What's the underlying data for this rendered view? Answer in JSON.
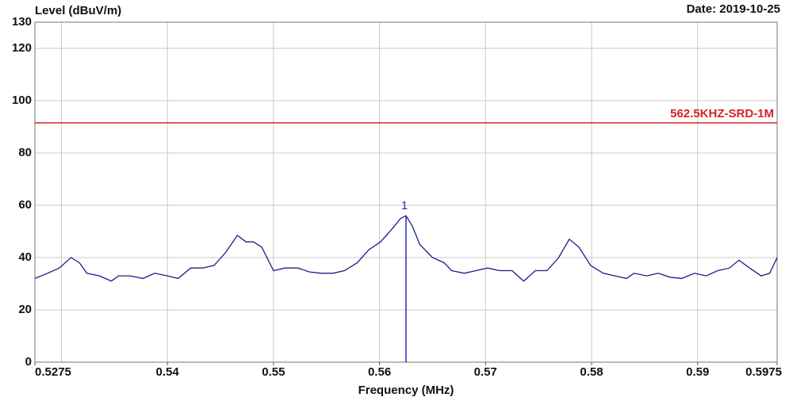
{
  "chart_data": {
    "type": "line",
    "title": "Level (dBuV/m)",
    "date": "Date: 2019-10-25",
    "xlabel": "Frequency (MHz)",
    "xlim": [
      0.5275,
      0.5975
    ],
    "ylim": [
      0,
      130
    ],
    "xticks": [
      0.5275,
      0.54,
      0.55,
      0.56,
      0.57,
      0.58,
      0.59,
      0.5975
    ],
    "xgrid": [
      0.53,
      0.54,
      0.55,
      0.56,
      0.57,
      0.58,
      0.59
    ],
    "yticks": [
      0,
      20,
      40,
      60,
      80,
      100,
      120,
      130
    ],
    "grid": true,
    "limit_line": {
      "label": "562.5KHZ-SRD-1M",
      "value": 91.5,
      "color": "#d42424"
    },
    "markers": [
      {
        "label": "1",
        "x": 0.5625,
        "value": 56,
        "color": "#2b2bb8"
      }
    ],
    "series": [
      {
        "color": "#1c1c8a",
        "x": [
          0.5275,
          0.5287,
          0.5298,
          0.5309,
          0.5317,
          0.5324,
          0.5336,
          0.5347,
          0.5354,
          0.5365,
          0.5377,
          0.5388,
          0.54,
          0.541,
          0.5422,
          0.5433,
          0.5444,
          0.5455,
          0.5466,
          0.5474,
          0.5481,
          0.5489,
          0.55,
          0.5511,
          0.5523,
          0.5534,
          0.5545,
          0.5556,
          0.5567,
          0.5579,
          0.559,
          0.5601,
          0.5612,
          0.562,
          0.5625,
          0.5631,
          0.5638,
          0.565,
          0.5661,
          0.5668,
          0.568,
          0.5691,
          0.5702,
          0.5713,
          0.5725,
          0.5736,
          0.5747,
          0.5758,
          0.5769,
          0.5779,
          0.5788,
          0.5799,
          0.5811,
          0.5822,
          0.5833,
          0.584,
          0.5852,
          0.5863,
          0.5874,
          0.5885,
          0.5897,
          0.5908,
          0.5919,
          0.593,
          0.5939,
          0.5949,
          0.596,
          0.5968,
          0.5975
        ],
        "values": [
          32,
          34,
          36,
          40,
          38,
          34,
          33,
          31,
          33,
          33,
          32,
          34,
          33,
          32,
          36,
          36,
          37,
          42,
          48.5,
          46,
          46,
          44,
          35,
          36,
          36,
          34.5,
          34,
          34,
          35,
          38,
          43,
          46,
          51,
          55,
          56,
          52,
          45,
          40,
          38,
          35,
          34,
          35,
          36,
          35,
          35,
          31,
          35,
          35,
          40,
          47,
          44,
          37,
          34,
          33,
          32,
          34,
          33,
          34,
          32.5,
          32,
          34,
          33,
          35,
          36,
          39,
          36,
          33,
          34,
          40
        ]
      }
    ]
  }
}
